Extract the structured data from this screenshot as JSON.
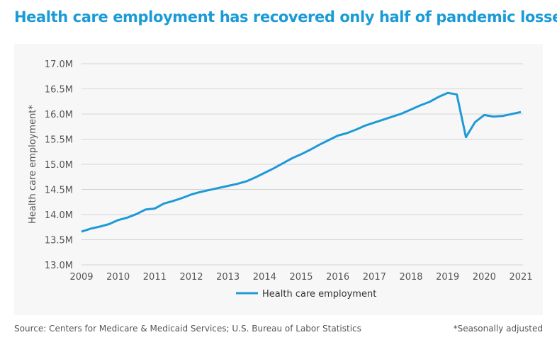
{
  "title": "Health care employment has recovered only half of pandemic losses",
  "source": "Source: Centers for Medicare & Medicaid Services; U.S. Bureau of Labor Statistics",
  "note": "*Seasonally adjusted",
  "colors": {
    "accent": "#1a9bd7",
    "line": "#1f9ad6",
    "grid": "#d4d4d4",
    "text": "#555555"
  },
  "chart_data": {
    "type": "line",
    "title": "Health care employment has recovered only half of pandemic losses",
    "xlabel": "",
    "ylabel": "Health care employment*",
    "xlim": [
      2009,
      2021
    ],
    "ylim": [
      13.0,
      17.0
    ],
    "grid": true,
    "legend_position": "bottom-center",
    "x_ticks": [
      "2009",
      "2010",
      "2011",
      "2012",
      "2013",
      "2014",
      "2015",
      "2016",
      "2017",
      "2018",
      "2019",
      "2020",
      "2021"
    ],
    "y_ticks": [
      "13.0M",
      "13.5M",
      "14.0M",
      "14.5M",
      "15.0M",
      "15.5M",
      "16.0M",
      "16.5M",
      "17.0M"
    ],
    "series": [
      {
        "name": "Health care employment",
        "x": [
          2009,
          2009.25,
          2009.5,
          2009.75,
          2010,
          2010.25,
          2010.5,
          2010.75,
          2011,
          2011.25,
          2011.5,
          2011.75,
          2012,
          2012.25,
          2012.5,
          2012.75,
          2013,
          2013.25,
          2013.5,
          2013.75,
          2014,
          2014.25,
          2014.5,
          2014.75,
          2015,
          2015.25,
          2015.5,
          2015.75,
          2016,
          2016.25,
          2016.5,
          2016.75,
          2017,
          2017.25,
          2017.5,
          2017.75,
          2018,
          2018.25,
          2018.5,
          2018.75,
          2019,
          2019.25,
          2019.5,
          2019.75,
          2020,
          2020.25,
          2020.5,
          2020.75,
          2021
        ],
        "values": [
          13.66,
          13.72,
          13.76,
          13.81,
          13.89,
          13.94,
          14.01,
          14.1,
          14.12,
          14.22,
          14.27,
          14.33,
          14.4,
          14.45,
          14.49,
          14.53,
          14.57,
          14.61,
          14.66,
          14.74,
          14.83,
          14.92,
          15.02,
          15.12,
          15.2,
          15.29,
          15.39,
          15.48,
          15.57,
          15.62,
          15.69,
          15.77,
          15.83,
          15.89,
          15.95,
          16.01,
          16.09,
          16.17,
          16.24,
          16.34,
          16.42,
          16.39,
          15.54,
          15.84,
          15.98,
          15.95,
          15.96,
          16.0,
          16.04
        ]
      }
    ]
  }
}
